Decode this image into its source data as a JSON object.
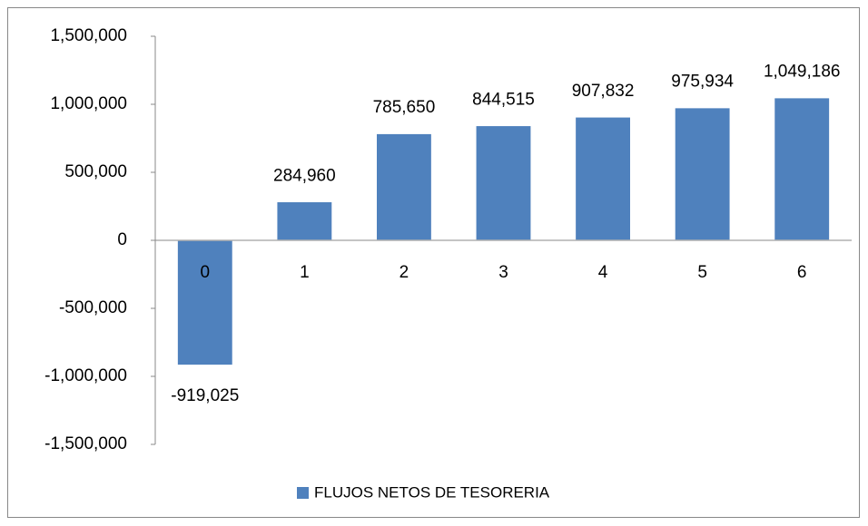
{
  "chart_data": {
    "type": "bar",
    "categories": [
      "0",
      "1",
      "2",
      "3",
      "4",
      "5",
      "6"
    ],
    "series": [
      {
        "name": "FLUJOS NETOS DE TESORERIA",
        "color": "#4f81bd",
        "values": [
          -919025,
          284960,
          785650,
          844515,
          907832,
          975934,
          1049186
        ],
        "value_labels": [
          "-919,025",
          "284,960",
          "785,650",
          "844,515",
          "907,832",
          "975,934",
          "1,049,186"
        ]
      }
    ],
    "ylim": [
      -1500000,
      1500000
    ],
    "yticks": [
      {
        "value": -1500000,
        "label": "-1,500,000"
      },
      {
        "value": -1000000,
        "label": "-1,000,000"
      },
      {
        "value": -500000,
        "label": "-500,000"
      },
      0,
      {
        "value": 500000,
        "label": "500,000"
      },
      {
        "value": 1000000,
        "label": "1,000,000"
      },
      {
        "value": 1500000,
        "label": "1,500,000"
      }
    ],
    "grid": false,
    "legend": "bottom"
  }
}
